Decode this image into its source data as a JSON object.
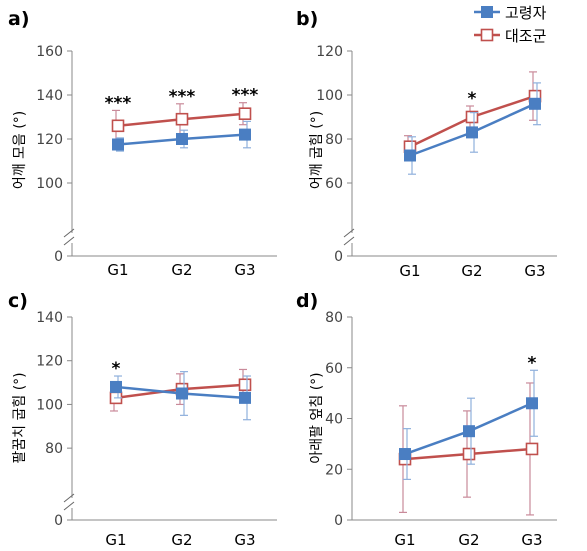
{
  "colors": {
    "elderly": "#4a7ec2",
    "control": "#c0504d",
    "axis": "#888888"
  },
  "legend": {
    "items": [
      "고령자",
      "대조군"
    ]
  },
  "chart_data": [
    {
      "panel": "a)",
      "type": "line",
      "categories": [
        "G1",
        "G2",
        "G3"
      ],
      "ylabel": "어깨 모음 (°)",
      "yticks": [
        0,
        100,
        120,
        140,
        160
      ],
      "ylim": [
        90,
        160
      ],
      "axis_break": true,
      "series": [
        {
          "name": "고령자",
          "marker": "square-filled",
          "values": [
            117.5,
            120,
            122
          ],
          "err": [
            3,
            4,
            6
          ]
        },
        {
          "name": "대조군",
          "marker": "square-open",
          "values": [
            126,
            129,
            131.5
          ],
          "err": [
            7,
            7,
            5
          ]
        }
      ],
      "significance": [
        "***",
        "***",
        "***"
      ]
    },
    {
      "panel": "b)",
      "type": "line",
      "categories": [
        "G1",
        "G2",
        "G3"
      ],
      "ylabel": "어깨 굽힘 (°)",
      "yticks": [
        0,
        60,
        80,
        100,
        120
      ],
      "ylim": [
        50,
        120
      ],
      "axis_break": true,
      "series": [
        {
          "name": "고령자",
          "marker": "square-filled",
          "values": [
            72.5,
            83,
            96
          ],
          "err": [
            8.5,
            9,
            9.5
          ]
        },
        {
          "name": "대조군",
          "marker": "square-open",
          "values": [
            76.5,
            90,
            99.5
          ],
          "err": [
            5,
            5,
            11
          ]
        }
      ],
      "significance": [
        "",
        "*",
        ""
      ]
    },
    {
      "panel": "c)",
      "type": "line",
      "categories": [
        "G1",
        "G2",
        "G3"
      ],
      "ylabel": "팔꿈치 굽힘 (°)",
      "yticks": [
        0,
        80,
        100,
        120,
        140
      ],
      "ylim": [
        70,
        140
      ],
      "axis_break": true,
      "series": [
        {
          "name": "고령자",
          "marker": "square-filled",
          "values": [
            108,
            105,
            103
          ],
          "err": [
            5,
            10,
            10
          ]
        },
        {
          "name": "대조군",
          "marker": "square-open",
          "values": [
            103,
            107,
            109
          ],
          "err": [
            6,
            7,
            7
          ]
        }
      ],
      "significance": [
        "*",
        "",
        ""
      ]
    },
    {
      "panel": "d)",
      "type": "line",
      "categories": [
        "G1",
        "G2",
        "G3"
      ],
      "ylabel": "아래팔 엎침 (°)",
      "yticks": [
        0,
        20,
        40,
        60,
        80
      ],
      "ylim": [
        0,
        80
      ],
      "axis_break": false,
      "series": [
        {
          "name": "고령자",
          "marker": "square-filled",
          "values": [
            26,
            35,
            46
          ],
          "err": [
            10,
            13,
            13
          ]
        },
        {
          "name": "대조군",
          "marker": "square-open",
          "values": [
            24,
            26,
            28
          ],
          "err": [
            21,
            17,
            26
          ]
        }
      ],
      "significance": [
        "",
        "",
        "*"
      ]
    }
  ]
}
